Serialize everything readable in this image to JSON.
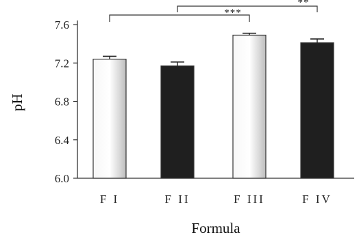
{
  "chart_data": {
    "type": "bar",
    "categories": [
      "F I",
      "F II",
      "F III",
      "F IV"
    ],
    "values": [
      7.24,
      7.17,
      7.49,
      7.41
    ],
    "error": [
      0.03,
      0.04,
      0.02,
      0.04
    ],
    "bar_colors": [
      "#e8e8e8",
      "#1f1f1f",
      "#ececec",
      "#1f1f1f"
    ],
    "bar_style": [
      "light-gradient",
      "dark",
      "light-gradient",
      "dark"
    ],
    "xlabel": "Formula",
    "ylabel": "pH",
    "ylim": [
      6.0,
      7.6
    ],
    "yticks": [
      "6.0",
      "6.4",
      "6.8",
      "7.2",
      "7.6"
    ],
    "grid": false,
    "significance": [
      {
        "from": 0,
        "to": 2,
        "label": "***"
      },
      {
        "from": 1,
        "to": 3,
        "label": "**"
      }
    ]
  }
}
